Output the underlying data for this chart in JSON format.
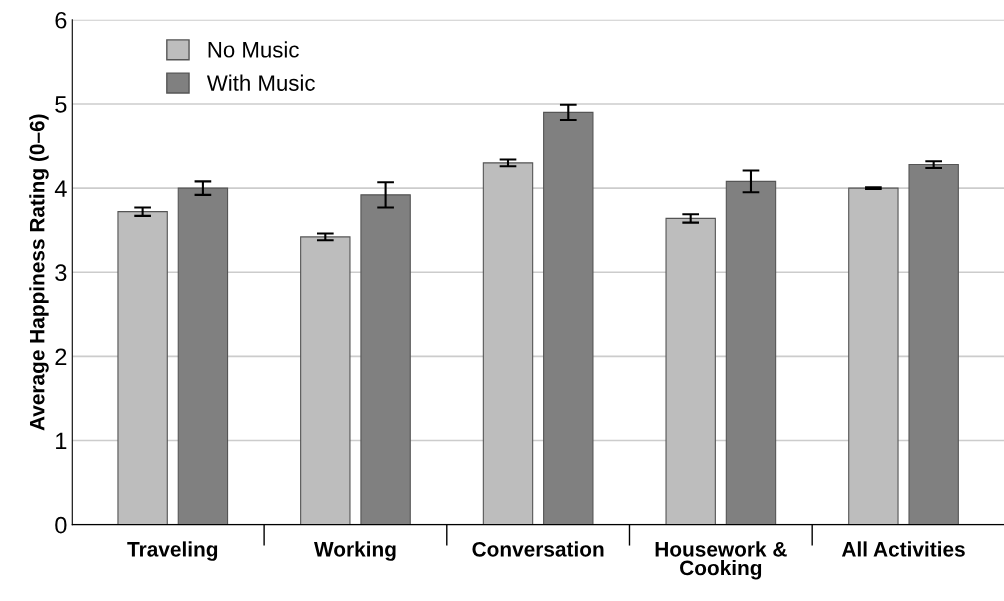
{
  "chart_data": {
    "type": "bar",
    "ylabel": "Average Happiness Rating (0–6)",
    "categories": [
      "Traveling",
      "Working",
      "Conversation",
      "Housework &\nCooking",
      "All Activities"
    ],
    "series": [
      {
        "name": "No Music",
        "color": "#bdbdbd",
        "values": [
          3.72,
          3.42,
          4.3,
          3.64,
          4.0
        ],
        "errors": [
          0.05,
          0.04,
          0.04,
          0.05,
          0.01
        ]
      },
      {
        "name": "With Music",
        "color": "#808080",
        "values": [
          4.0,
          3.92,
          4.9,
          4.08,
          4.28
        ],
        "errors": [
          0.08,
          0.15,
          0.09,
          0.13,
          0.04
        ]
      }
    ],
    "ylim": [
      0,
      6
    ],
    "yticks": [
      0,
      1,
      2,
      3,
      4,
      5,
      6
    ],
    "grid": "y",
    "legend": "top left"
  }
}
